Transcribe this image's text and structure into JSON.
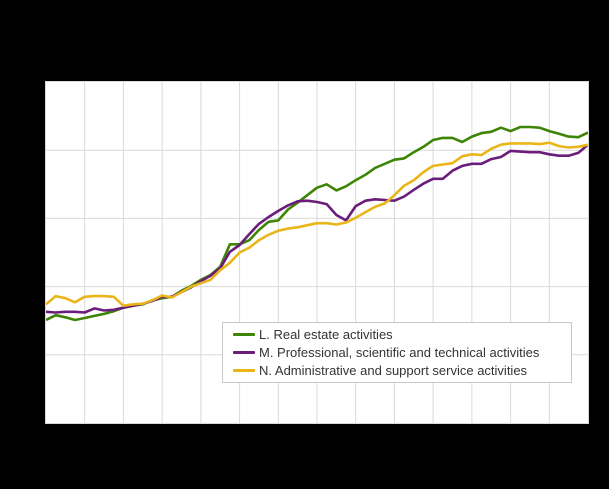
{
  "page": {
    "background": "#000000"
  },
  "chart": {
    "plot_background": "#ffffff",
    "grid_color": "#d9d9d9",
    "legend": {
      "border_color": "#c8c8c8",
      "text_color": "#333333"
    }
  },
  "chart_data": {
    "type": "line",
    "grid": "on",
    "legend_position": "inside-bottom-right",
    "x": {
      "points": 57,
      "grid_intervals": 14,
      "tick_labels_visible": false
    },
    "y": {
      "grid_intervals": 5,
      "min_units": 0,
      "max_units": 5,
      "unit": "horizontal-gridline units measured from bottom axis (numeric axis labels are not visible in the image)",
      "tick_labels_visible": false
    },
    "series": [
      {
        "name": "L. Real estate activities",
        "color": "#3e8505",
        "values": [
          1.51,
          1.58,
          1.55,
          1.51,
          1.54,
          1.57,
          1.6,
          1.64,
          1.69,
          1.72,
          1.74,
          1.8,
          1.83,
          1.85,
          1.94,
          2.01,
          2.1,
          2.17,
          2.29,
          2.62,
          2.62,
          2.68,
          2.83,
          2.95,
          2.97,
          3.13,
          3.23,
          3.34,
          3.45,
          3.5,
          3.41,
          3.47,
          3.56,
          3.64,
          3.74,
          3.8,
          3.86,
          3.88,
          3.97,
          4.05,
          4.15,
          4.18,
          4.18,
          4.12,
          4.2,
          4.25,
          4.27,
          4.33,
          4.28,
          4.34,
          4.34,
          4.33,
          4.28,
          4.24,
          4.2,
          4.19,
          4.26
        ]
      },
      {
        "name": "M. Professional, scientific and technical activities",
        "color": "#6a1d7a",
        "values": [
          1.63,
          1.62,
          1.63,
          1.63,
          1.62,
          1.68,
          1.65,
          1.66,
          1.69,
          1.72,
          1.75,
          1.79,
          1.85,
          1.85,
          1.92,
          1.99,
          2.08,
          2.16,
          2.27,
          2.51,
          2.61,
          2.77,
          2.92,
          3.02,
          3.11,
          3.19,
          3.25,
          3.26,
          3.24,
          3.21,
          3.05,
          2.97,
          3.18,
          3.26,
          3.28,
          3.27,
          3.26,
          3.32,
          3.42,
          3.51,
          3.58,
          3.58,
          3.7,
          3.77,
          3.8,
          3.8,
          3.87,
          3.9,
          3.99,
          3.98,
          3.97,
          3.97,
          3.94,
          3.92,
          3.92,
          3.96,
          4.08
        ]
      },
      {
        "name": "N. Administrative and support service activities",
        "color": "#eab519",
        "values": [
          1.74,
          1.86,
          1.83,
          1.77,
          1.85,
          1.86,
          1.86,
          1.85,
          1.72,
          1.74,
          1.75,
          1.8,
          1.87,
          1.84,
          1.92,
          2.0,
          2.05,
          2.1,
          2.24,
          2.35,
          2.5,
          2.57,
          2.68,
          2.76,
          2.82,
          2.85,
          2.87,
          2.9,
          2.93,
          2.93,
          2.91,
          2.94,
          3.01,
          3.09,
          3.17,
          3.22,
          3.34,
          3.48,
          3.56,
          3.68,
          3.77,
          3.79,
          3.81,
          3.91,
          3.94,
          3.93,
          4.02,
          4.08,
          4.1,
          4.1,
          4.1,
          4.09,
          4.11,
          4.06,
          4.04,
          4.05,
          4.08
        ]
      }
    ]
  }
}
